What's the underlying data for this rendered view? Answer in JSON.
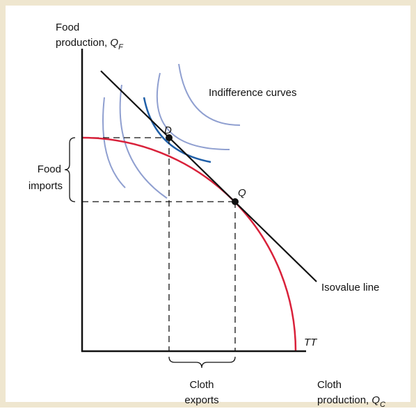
{
  "y_axis": {
    "line1": "Food",
    "line2": "production, ",
    "var": "Q",
    "sub": "F"
  },
  "x_axis": {
    "line1": "Cloth",
    "line2": "production, ",
    "var": "Q",
    "sub": "C"
  },
  "indifference_label": "Indifference curves",
  "point_d": "D",
  "point_q": "Q",
  "food_imports": [
    "Food",
    "imports"
  ],
  "isovalue_label": "Isovalue line",
  "curve_label": "TT",
  "cloth_exports": [
    "Cloth",
    "exports"
  ]
}
